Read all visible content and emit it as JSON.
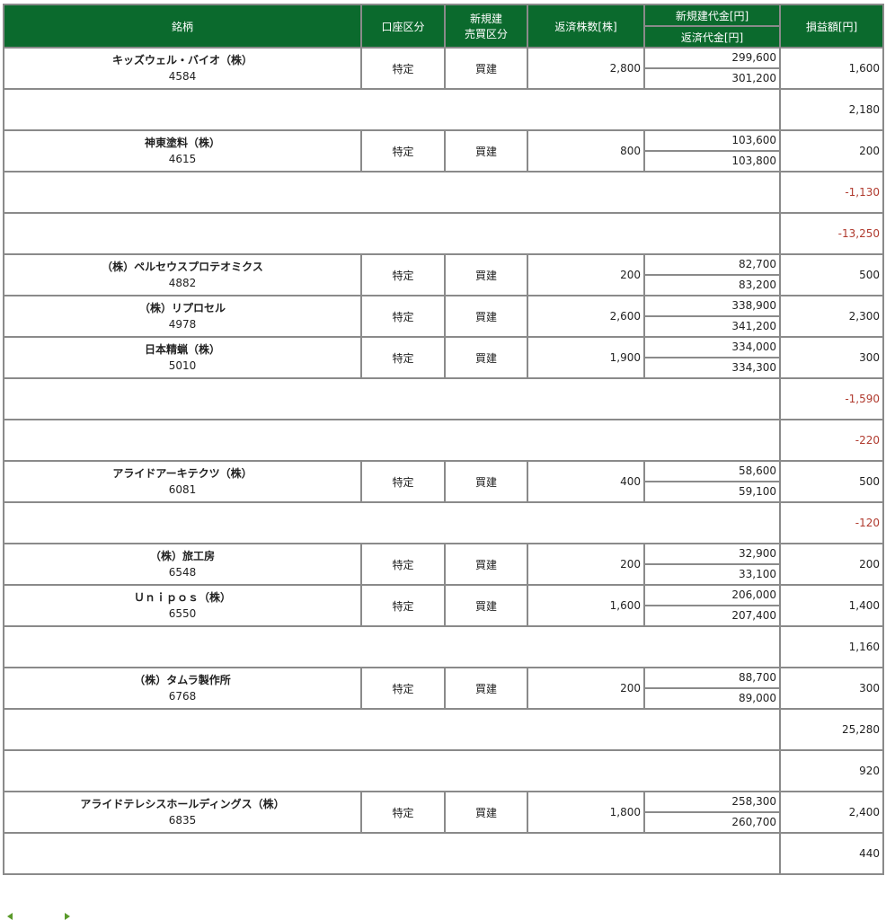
{
  "header": {
    "name": "銘柄",
    "account": "口座区分",
    "trade_type_1": "新規建",
    "trade_type_2": "売買区分",
    "qty": "返済株数[株]",
    "open_amount": "新規建代金[円]",
    "close_amount": "返済代金[円]",
    "pl": "損益額[円]"
  },
  "colors": {
    "header_bg": "#0b6a2d",
    "negative": "#b03a2e"
  },
  "rows": [
    {
      "name": "キッズウェル・バイオ（株）",
      "code": "4584",
      "account": "特定",
      "type": "買建",
      "qty": "2,800",
      "open": "299,600",
      "close": "301,200",
      "pl": "1,600"
    },
    {
      "redacted": true,
      "pl": "2,180"
    },
    {
      "name": "神東塗料（株）",
      "code": "4615",
      "account": "特定",
      "type": "買建",
      "qty": "800",
      "open": "103,600",
      "close": "103,800",
      "pl": "200"
    },
    {
      "redacted": true,
      "pl": "-1,130"
    },
    {
      "redacted": true,
      "pl": "-13,250"
    },
    {
      "name": "（株）ペルセウスプロテオミクス",
      "code": "4882",
      "account": "特定",
      "type": "買建",
      "qty": "200",
      "open": "82,700",
      "close": "83,200",
      "pl": "500"
    },
    {
      "name": "（株）リプロセル",
      "code": "4978",
      "account": "特定",
      "type": "買建",
      "qty": "2,600",
      "open": "338,900",
      "close": "341,200",
      "pl": "2,300"
    },
    {
      "name": "日本精蝋（株）",
      "code": "5010",
      "account": "特定",
      "type": "買建",
      "qty": "1,900",
      "open": "334,000",
      "close": "334,300",
      "pl": "300"
    },
    {
      "redacted": true,
      "pl": "-1,590"
    },
    {
      "redacted": true,
      "pl": "-220"
    },
    {
      "name": "アライドアーキテクツ（株）",
      "code": "6081",
      "account": "特定",
      "type": "買建",
      "qty": "400",
      "open": "58,600",
      "close": "59,100",
      "pl": "500"
    },
    {
      "redacted": true,
      "pl": "-120"
    },
    {
      "name": "（株）旅工房",
      "code": "6548",
      "account": "特定",
      "type": "買建",
      "qty": "200",
      "open": "32,900",
      "close": "33,100",
      "pl": "200"
    },
    {
      "name": "Ｕｎｉｐｏｓ（株）",
      "code": "6550",
      "account": "特定",
      "type": "買建",
      "qty": "1,600",
      "open": "206,000",
      "close": "207,400",
      "pl": "1,400"
    },
    {
      "redacted": true,
      "pl": "1,160"
    },
    {
      "name": "（株）タムラ製作所",
      "code": "6768",
      "account": "特定",
      "type": "買建",
      "qty": "200",
      "open": "88,700",
      "close": "89,000",
      "pl": "300"
    },
    {
      "redacted": true,
      "pl": "25,280"
    },
    {
      "redacted": true,
      "pl": "920"
    },
    {
      "name": "アライドテレシスホールディングス（株）",
      "code": "6835",
      "account": "特定",
      "type": "買建",
      "qty": "1,800",
      "open": "258,300",
      "close": "260,700",
      "pl": "2,400"
    },
    {
      "redacted": true,
      "pl": "440"
    }
  ]
}
